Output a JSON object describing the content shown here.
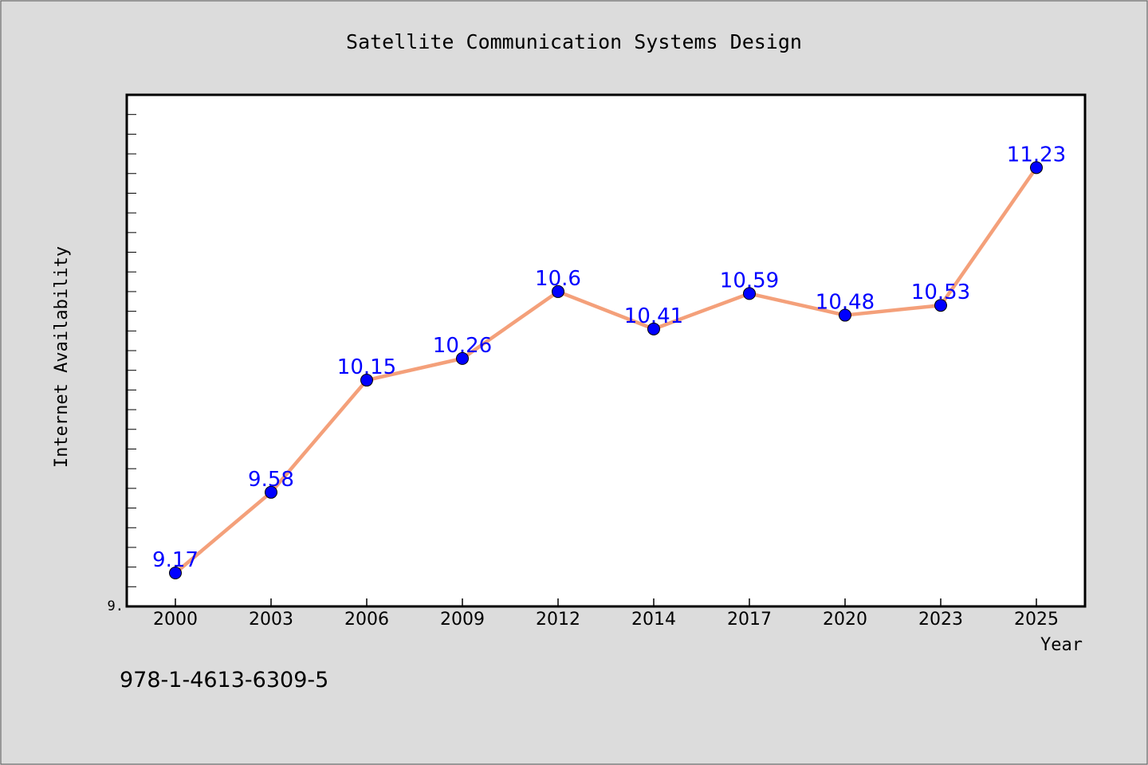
{
  "chart_data": {
    "type": "line",
    "title": "Satellite Communication Systems Design",
    "xlabel": "Year",
    "ylabel": "Internet Availability",
    "categories": [
      "2000",
      "2003",
      "2006",
      "2009",
      "2012",
      "2014",
      "2017",
      "2020",
      "2023",
      "2025"
    ],
    "series": [
      {
        "values": [
          9.17,
          9.58,
          10.15,
          10.26,
          10.6,
          10.41,
          10.59,
          10.48,
          10.53,
          11.23
        ]
      }
    ],
    "data_labels": [
      "9.17",
      "9.58",
      "10.15",
      "10.26",
      "10.6",
      "10.41",
      "10.59",
      "10.48",
      "10.53",
      "11.23"
    ],
    "ylim": [
      9.0,
      11.6
    ],
    "y_tick_label": "9.",
    "grid": false,
    "line_color": "#f4a07a",
    "marker_color": "#0000ff",
    "label_color": "#0000ff"
  },
  "footer": {
    "isbn": "978-1-4613-6309-5"
  }
}
